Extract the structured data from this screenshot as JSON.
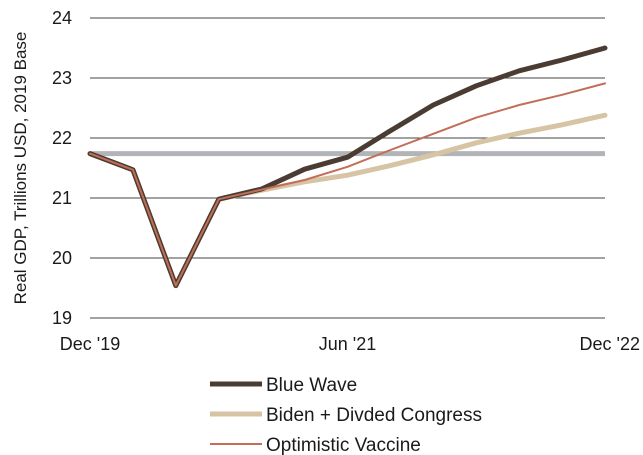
{
  "chart_data": {
    "type": "line",
    "ylabel": "Real GDP, Trillions USD, 2019 Base",
    "xlabel": "",
    "ylim": [
      19,
      24
    ],
    "yticks": [
      19,
      20,
      21,
      22,
      23,
      24
    ],
    "x_tick_labels": [
      "Dec '19",
      "Jun '21",
      "Dec '22"
    ],
    "x": [
      "Dec '19",
      "Mar '20",
      "Jun '20",
      "Sep '20",
      "Dec '20",
      "Mar '21",
      "Jun '21",
      "Sep '21",
      "Dec '21",
      "Mar '22",
      "Jun '22",
      "Sep '22",
      "Dec '22"
    ],
    "grid": true,
    "legend_position": "bottom",
    "series": [
      {
        "name": "Blue Wave",
        "color": "#4a3c33",
        "values": [
          21.74,
          21.47,
          19.54,
          20.98,
          21.15,
          21.48,
          21.68,
          22.12,
          22.55,
          22.87,
          23.12,
          23.3,
          23.5
        ]
      },
      {
        "name": "Biden + Divded Congress",
        "color": "#d6c4a4",
        "values": [
          21.74,
          21.47,
          19.54,
          20.98,
          21.13,
          21.27,
          21.38,
          21.54,
          21.72,
          21.92,
          22.08,
          22.22,
          22.38
        ]
      },
      {
        "name": "Optimistic Vaccine",
        "color": "#c26e58",
        "values": [
          21.74,
          21.47,
          19.54,
          20.98,
          21.14,
          21.3,
          21.52,
          21.8,
          22.07,
          22.34,
          22.55,
          22.72,
          22.91
        ]
      }
    ],
    "reference_line": {
      "value": 21.74,
      "color": "#b2b4b8"
    }
  }
}
